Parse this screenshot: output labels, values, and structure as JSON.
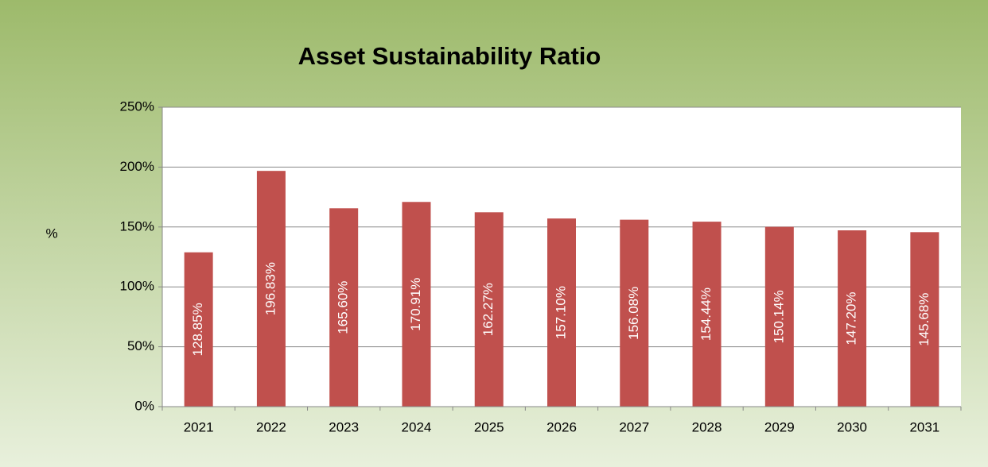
{
  "chart_data": {
    "type": "bar",
    "title": "Asset Sustainability Ratio",
    "y_label": "%",
    "categories": [
      "2021",
      "2022",
      "2023",
      "2024",
      "2025",
      "2026",
      "2027",
      "2028",
      "2029",
      "2030",
      "2031"
    ],
    "values": [
      128.85,
      196.83,
      165.6,
      170.91,
      162.27,
      157.1,
      156.08,
      154.44,
      150.14,
      147.2,
      145.68
    ],
    "value_labels": [
      "128.85%",
      "196.83%",
      "165.60%",
      "170.91%",
      "162.27%",
      "157.10%",
      "156.08%",
      "154.44%",
      "150.14%",
      "147.20%",
      "145.68%"
    ],
    "color": "#c0504d",
    "ylim": [
      0,
      250
    ],
    "yticks": [
      {
        "value": 0,
        "label": "0%"
      },
      {
        "value": 50,
        "label": "50%"
      },
      {
        "value": 100,
        "label": "100%"
      },
      {
        "value": 150,
        "label": "150%"
      },
      {
        "value": 200,
        "label": "200%"
      },
      {
        "value": 250,
        "label": "250%"
      }
    ],
    "grid": true
  }
}
